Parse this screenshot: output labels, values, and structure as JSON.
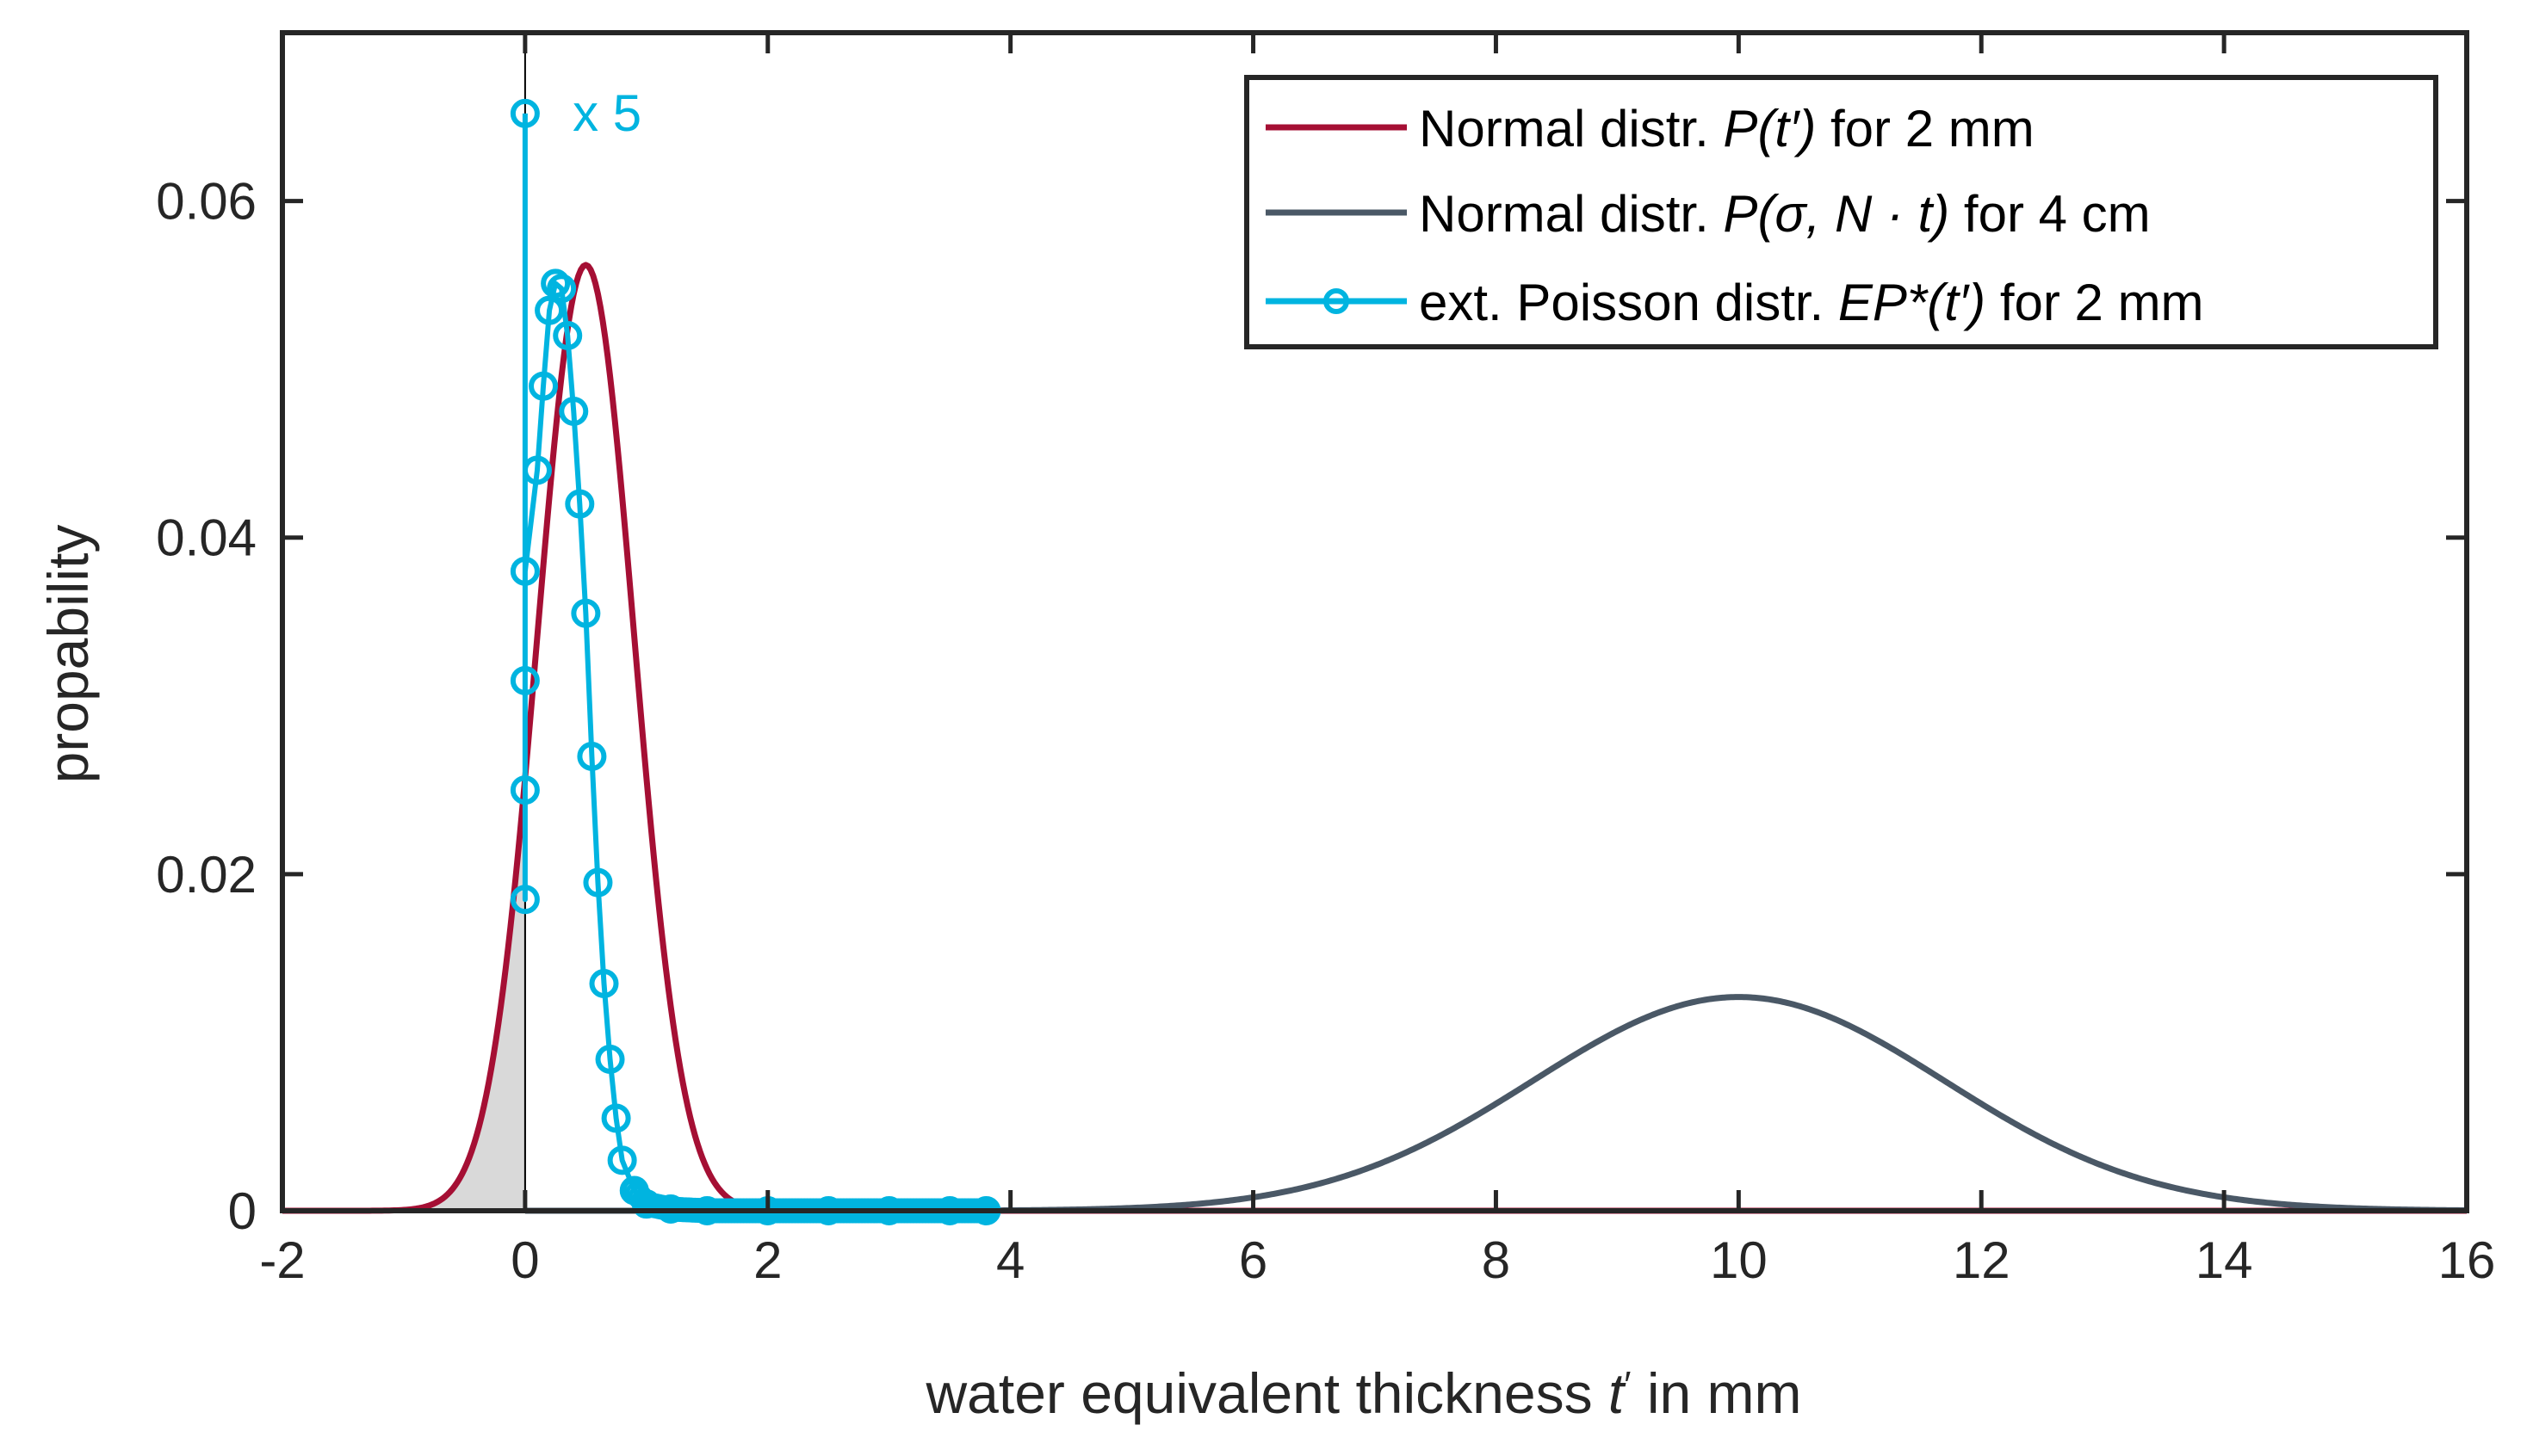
{
  "chart_data": {
    "type": "line",
    "title": "",
    "xlabel": {
      "prefix": "water equivalent thickness ",
      "var": "t",
      "prime": "′",
      "suffix": " in mm"
    },
    "ylabel": "propability",
    "xlim": [
      -2,
      16
    ],
    "ylim": [
      0,
      0.07
    ],
    "xticks": [
      -2,
      0,
      2,
      4,
      6,
      8,
      10,
      12,
      14,
      16
    ],
    "xtick_labels": [
      "-2",
      "0",
      "2",
      "4",
      "6",
      "8",
      "10",
      "12",
      "14",
      "16"
    ],
    "yticks": [
      0,
      0.02,
      0.04,
      0.06
    ],
    "ytick_labels": [
      "0",
      "0.02",
      "0.04",
      "0.06"
    ],
    "grid": false,
    "legend_position": "top-right",
    "series": [
      {
        "name": "Normal distr. P(t′) for 2 mm",
        "legend_parts": {
          "pre": "Normal distr. ",
          "it": "P(t′)",
          "post": " for 2 mm"
        },
        "color": "#A50F34",
        "kind": "gaussian",
        "mean": 0.5,
        "sigma": 0.4,
        "peak": 0.0562,
        "x_range": [
          -2,
          16
        ]
      },
      {
        "name": "Normal distr. P(σ, N · t) for 4 cm",
        "legend_parts": {
          "pre": "Normal distr. ",
          "it": "P(σ, N · t)",
          "post": " for 4 cm"
        },
        "color": "#4A5866",
        "kind": "gaussian",
        "mean": 10,
        "sigma": 1.7,
        "peak": 0.0127,
        "x_range": [
          0,
          16
        ]
      },
      {
        "name": "ext. Poisson distr. EP*(t′) for 2 mm",
        "legend_parts": {
          "pre": "ext. Poisson distr. ",
          "it": "EP*(t′)",
          "post": " for 2 mm"
        },
        "color": "#00B4E0",
        "kind": "points",
        "x": [
          0,
          0,
          0,
          0,
          0.1,
          0.15,
          0.2,
          0.25,
          0.3,
          0.35,
          0.4,
          0.45,
          0.5,
          0.55,
          0.6,
          0.65,
          0.7,
          0.75,
          0.8,
          0.9,
          1.0,
          1.2,
          1.5,
          2.0,
          2.5,
          3.0,
          3.5,
          3.8
        ],
        "y": [
          0.0185,
          0.025,
          0.0315,
          0.038,
          0.044,
          0.049,
          0.0535,
          0.0551,
          0.0548,
          0.052,
          0.0475,
          0.042,
          0.0355,
          0.027,
          0.0195,
          0.0135,
          0.009,
          0.0055,
          0.003,
          0.0012,
          0.0004,
          0.0001,
          0.0,
          0.0,
          0.0,
          0.0,
          0.0,
          0.0
        ],
        "outlier": {
          "x": 0,
          "y": 0.0652
        }
      }
    ],
    "shaded_region": {
      "x_from": -2,
      "x_to": 0,
      "under_series": 0,
      "color": "#D9D9D9"
    },
    "vertical_line": {
      "x": 0,
      "color": "#000000"
    },
    "annotations": [
      {
        "text": "x 5",
        "x": 0.25,
        "y": 0.0652,
        "color": "#00B4E0"
      }
    ]
  }
}
